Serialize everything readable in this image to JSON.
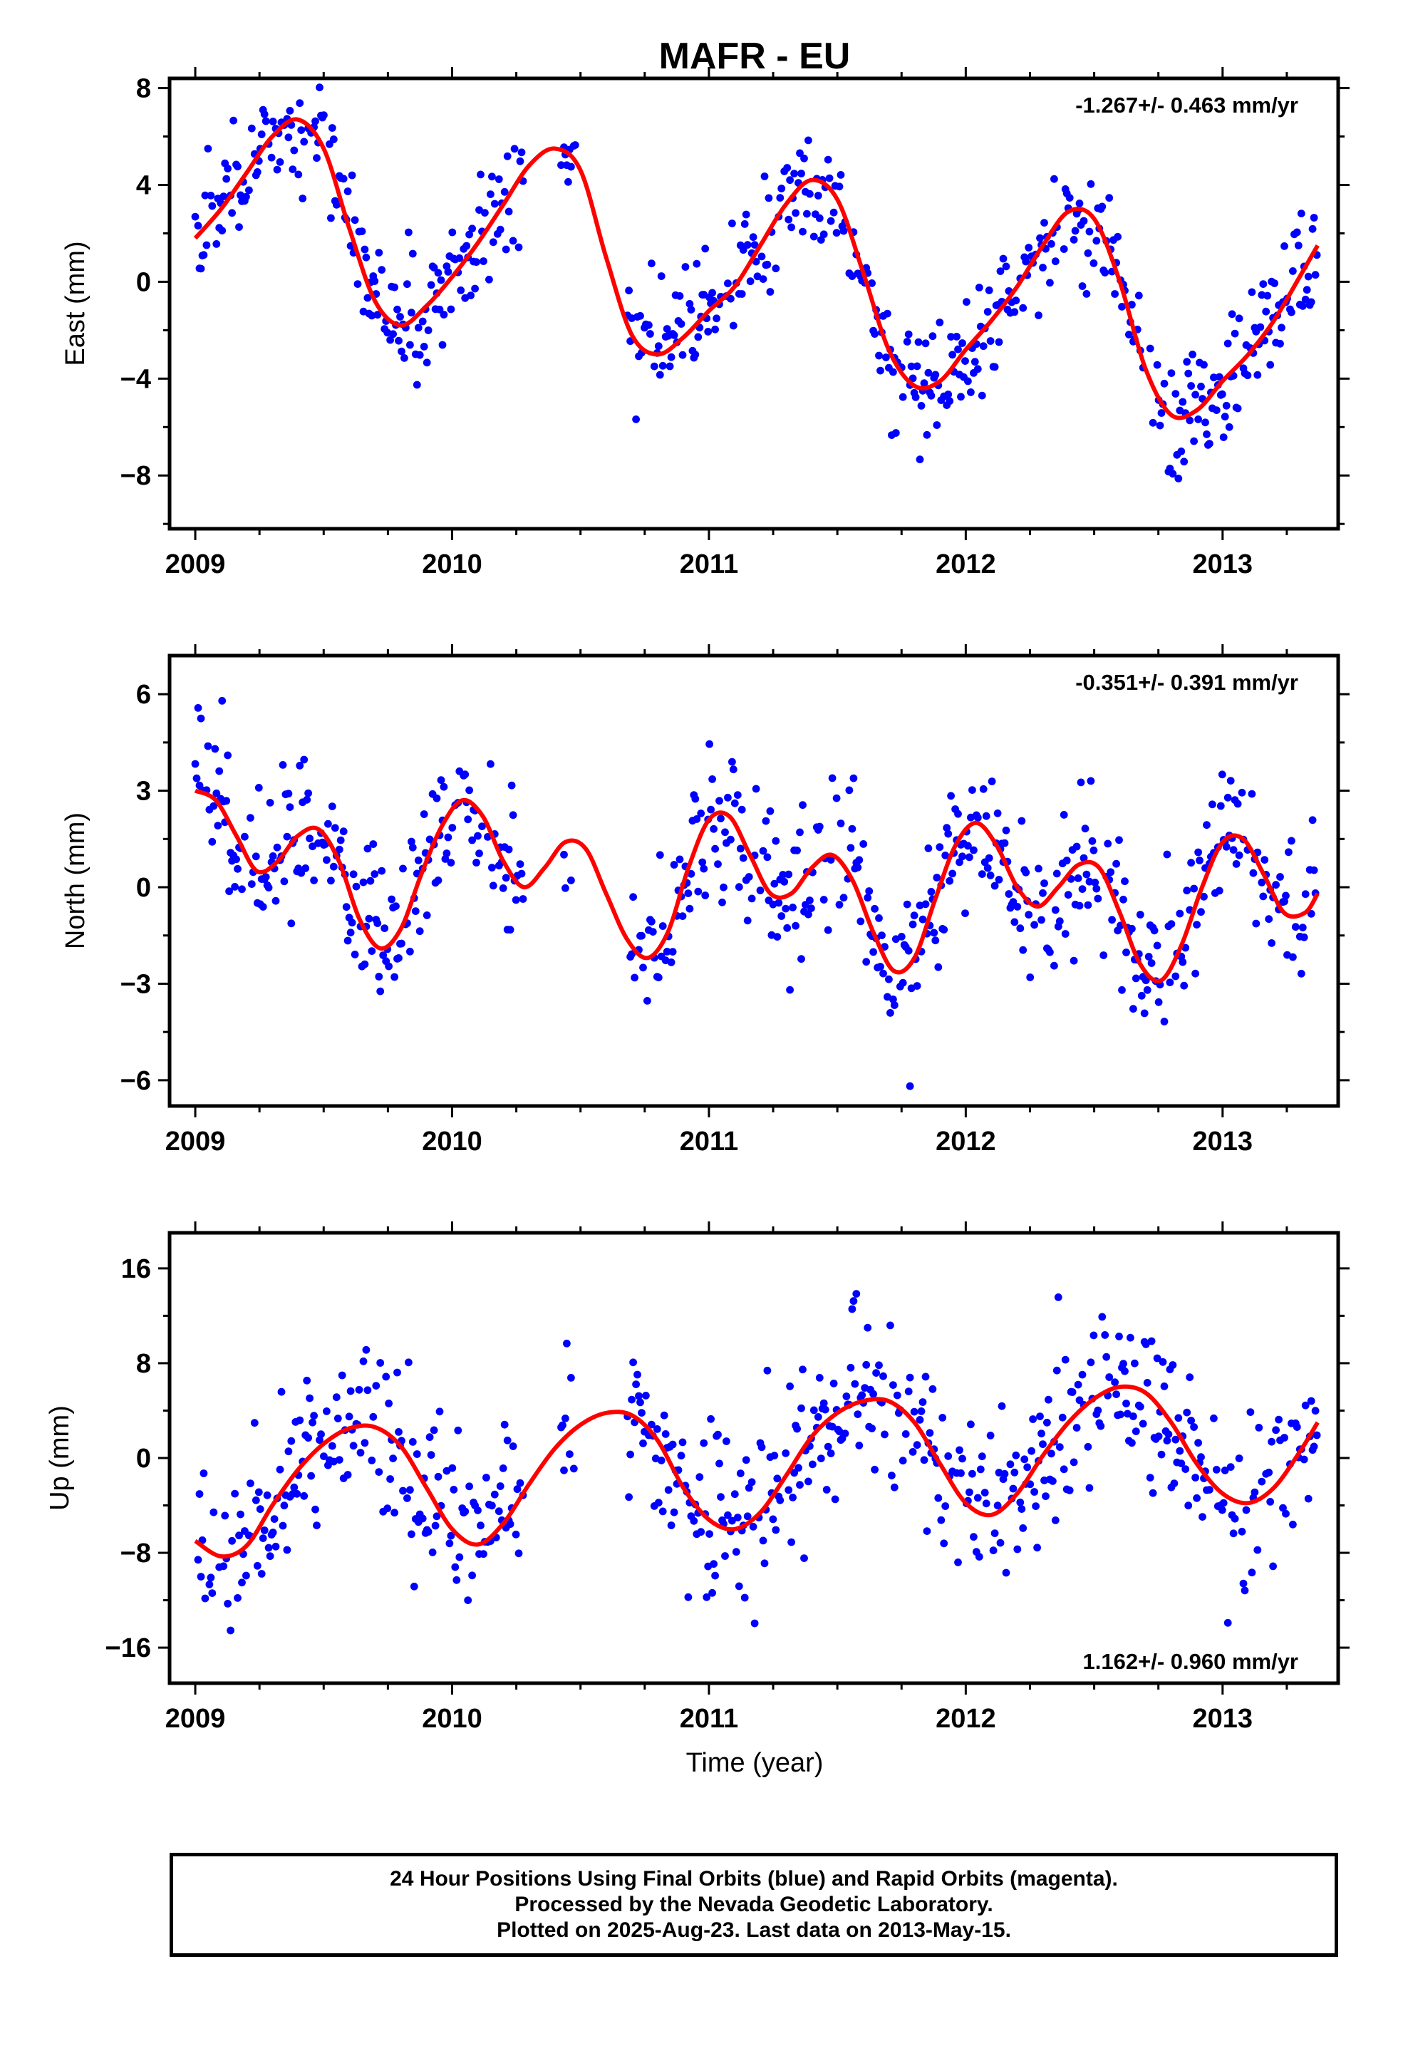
{
  "title": "MAFR - EU",
  "x_axis_label": "Time (year)",
  "chart_data": [
    {
      "type": "scatter",
      "name": "east",
      "ylabel": "East (mm)",
      "rate_text": "-1.267+/- 0.463 mm/yr",
      "rate_position": "top-right",
      "xlim": [
        2008.9,
        2013.45
      ],
      "ylim": [
        -10.2,
        8.4
      ],
      "x_ticks": [
        2009,
        2010,
        2011,
        2012,
        2013
      ],
      "y_ticks": [
        8,
        4,
        0,
        -4,
        -8
      ],
      "y_tick_labels": [
        "8",
        "4",
        "0",
        "−4",
        "−8"
      ],
      "data_start": 2009.0,
      "data_end": 2013.37,
      "gaps": [
        [
          2010.28,
          2010.42
        ],
        [
          2010.48,
          2010.68
        ]
      ],
      "points_color": "#0000ff",
      "fit_color": "#ff0000",
      "fit_curve": {
        "x": [
          2009.0,
          2009.1,
          2009.2,
          2009.3,
          2009.4,
          2009.5,
          2009.6,
          2009.7,
          2009.8,
          2009.9,
          2010.0,
          2010.1,
          2010.2,
          2010.3,
          2010.4,
          2010.5,
          2010.6,
          2010.7,
          2010.8,
          2010.9,
          2011.0,
          2011.1,
          2011.2,
          2011.3,
          2011.4,
          2011.5,
          2011.6,
          2011.7,
          2011.8,
          2011.9,
          2012.0,
          2012.1,
          2012.2,
          2012.3,
          2012.4,
          2012.5,
          2012.6,
          2012.7,
          2012.8,
          2012.9,
          2013.0,
          2013.1,
          2013.2,
          2013.3,
          2013.37
        ],
        "y": [
          1.8,
          3.0,
          4.5,
          6.0,
          6.7,
          5.5,
          2.2,
          -0.8,
          -1.8,
          -1.0,
          0.2,
          1.6,
          3.2,
          4.8,
          5.5,
          4.6,
          1.0,
          -2.2,
          -3.0,
          -2.3,
          -1.2,
          -0.2,
          1.5,
          3.2,
          4.2,
          3.4,
          0.4,
          -2.8,
          -4.3,
          -4.1,
          -2.8,
          -1.6,
          -0.2,
          1.5,
          2.9,
          2.6,
          0.0,
          -3.6,
          -5.5,
          -5.3,
          -4.1,
          -3.0,
          -1.6,
          0.2,
          1.5
        ]
      },
      "noise_sd": 1.3
    },
    {
      "type": "scatter",
      "name": "north",
      "ylabel": "North (mm)",
      "rate_text": "-0.351+/- 0.391 mm/yr",
      "rate_position": "top-right",
      "xlim": [
        2008.9,
        2013.45
      ],
      "ylim": [
        -6.8,
        7.2
      ],
      "x_ticks": [
        2009,
        2010,
        2011,
        2012,
        2013
      ],
      "y_ticks": [
        6,
        3,
        0,
        -3,
        -6
      ],
      "y_tick_labels": [
        "6",
        "3",
        "0",
        "−3",
        "−6"
      ],
      "data_start": 2009.0,
      "data_end": 2013.37,
      "gaps": [
        [
          2010.28,
          2010.42
        ],
        [
          2010.48,
          2010.68
        ]
      ],
      "points_color": "#0000ff",
      "fit_color": "#ff0000",
      "fit_curve": {
        "x": [
          2009.0,
          2009.08,
          2009.16,
          2009.24,
          2009.32,
          2009.4,
          2009.48,
          2009.56,
          2009.64,
          2009.72,
          2009.8,
          2009.88,
          2009.96,
          2010.04,
          2010.12,
          2010.2,
          2010.28,
          2010.36,
          2010.44,
          2010.52,
          2010.6,
          2010.68,
          2010.76,
          2010.84,
          2010.92,
          2011.0,
          2011.08,
          2011.16,
          2011.24,
          2011.32,
          2011.4,
          2011.48,
          2011.56,
          2011.64,
          2011.72,
          2011.8,
          2011.88,
          2011.96,
          2012.04,
          2012.12,
          2012.2,
          2012.28,
          2012.36,
          2012.44,
          2012.52,
          2012.6,
          2012.68,
          2012.76,
          2012.84,
          2012.92,
          2013.0,
          2013.08,
          2013.16,
          2013.24,
          2013.32,
          2013.37
        ],
        "y": [
          3.0,
          2.7,
          1.6,
          0.5,
          0.8,
          1.6,
          1.8,
          0.8,
          -1.0,
          -1.9,
          -1.3,
          0.4,
          1.9,
          2.7,
          2.2,
          0.8,
          0.0,
          0.6,
          1.4,
          1.2,
          -0.2,
          -1.6,
          -2.2,
          -1.4,
          0.6,
          2.1,
          2.2,
          1.0,
          -0.2,
          -0.2,
          0.6,
          1.0,
          0.2,
          -1.4,
          -2.6,
          -2.2,
          -0.4,
          1.3,
          2.0,
          1.3,
          0.0,
          -0.6,
          0.0,
          0.7,
          0.6,
          -0.8,
          -2.4,
          -2.9,
          -1.8,
          0.0,
          1.4,
          1.5,
          0.4,
          -0.8,
          -0.8,
          -0.2
        ]
      },
      "noise_sd": 1.1
    },
    {
      "type": "scatter",
      "name": "up",
      "ylabel": "Up (mm)",
      "rate_text": "1.162+/- 0.960 mm/yr",
      "rate_position": "bottom-right",
      "xlim": [
        2008.9,
        2013.45
      ],
      "ylim": [
        -19,
        19
      ],
      "x_ticks": [
        2009,
        2010,
        2011,
        2012,
        2013
      ],
      "y_ticks": [
        16,
        8,
        0,
        -8,
        -16
      ],
      "y_tick_labels": [
        "16",
        "8",
        "0",
        "−8",
        "−16"
      ],
      "data_start": 2009.0,
      "data_end": 2013.37,
      "gaps": [
        [
          2010.28,
          2010.42
        ],
        [
          2010.48,
          2010.68
        ]
      ],
      "points_color": "#0000ff",
      "fit_color": "#ff0000",
      "fit_curve": {
        "x": [
          2009.0,
          2009.1,
          2009.2,
          2009.3,
          2009.4,
          2009.5,
          2009.6,
          2009.7,
          2009.8,
          2009.9,
          2010.0,
          2010.1,
          2010.2,
          2010.3,
          2010.4,
          2010.5,
          2010.6,
          2010.7,
          2010.8,
          2010.9,
          2011.0,
          2011.1,
          2011.2,
          2011.3,
          2011.4,
          2011.5,
          2011.6,
          2011.7,
          2011.8,
          2011.9,
          2012.0,
          2012.1,
          2012.2,
          2012.3,
          2012.4,
          2012.5,
          2012.6,
          2012.7,
          2012.8,
          2012.9,
          2013.0,
          2013.1,
          2013.2,
          2013.3,
          2013.37
        ],
        "y": [
          -7.0,
          -8.3,
          -7.4,
          -4.0,
          -1.0,
          1.2,
          2.5,
          2.6,
          1.0,
          -2.5,
          -6.0,
          -7.3,
          -5.5,
          -2.2,
          0.8,
          2.8,
          3.8,
          3.6,
          1.5,
          -2.5,
          -5.2,
          -6.0,
          -4.6,
          -1.5,
          1.8,
          3.8,
          4.8,
          4.8,
          3.0,
          -0.5,
          -3.8,
          -4.8,
          -3.0,
          0.2,
          3.0,
          5.0,
          6.0,
          5.5,
          3.0,
          -0.5,
          -3.0,
          -3.8,
          -2.5,
          0.5,
          3.0
        ]
      },
      "noise_sd": 3.6
    }
  ],
  "footer": {
    "line1": "24 Hour Positions Using Final Orbits (blue) and Rapid Orbits (magenta).",
    "line2": "Processed by the Nevada Geodetic Laboratory.",
    "line3": "Plotted on 2025-Aug-23. Last data on 2013-May-15."
  }
}
